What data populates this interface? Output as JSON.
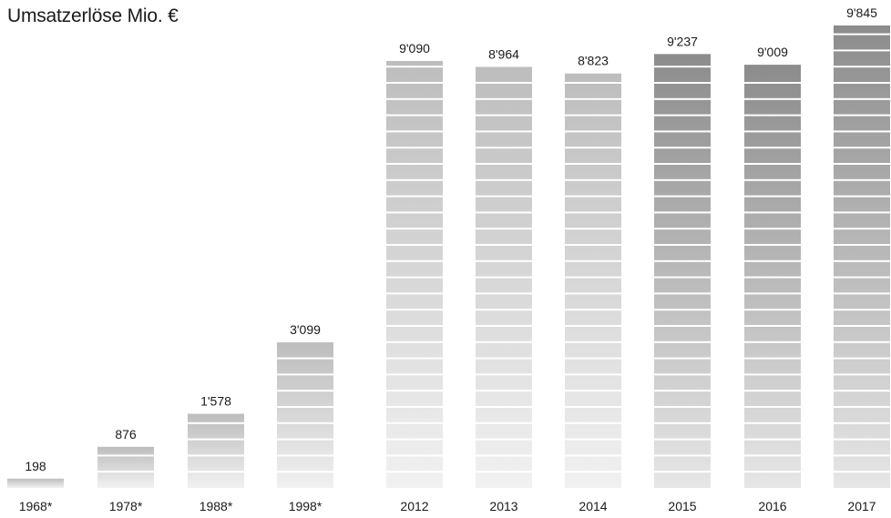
{
  "chart_data": {
    "type": "bar",
    "title": "Umsatzerlöse Mio. €",
    "xlabel": "",
    "ylabel": "",
    "categories": [
      "1968*",
      "1978*",
      "1988*",
      "1998*",
      "2012",
      "2013",
      "2014",
      "2015",
      "2016",
      "2017"
    ],
    "values": [
      198,
      876,
      1578,
      3099,
      9090,
      8964,
      8823,
      9237,
      9009,
      9845
    ],
    "value_labels": [
      "198",
      "876",
      "1'578",
      "3'099",
      "9'090",
      "8'964",
      "8'823",
      "9'237",
      "9'009",
      "9'845"
    ],
    "ylim": [
      0,
      9845
    ],
    "grid": false,
    "legend": "none",
    "colors": {
      "light_bar_top": "#bdbdbd",
      "light_bar_bottom": "#f1f1f1",
      "dark_bar_top": "#8c8c8c",
      "dark_bar_bottom": "#e6e6e6",
      "text": "#1a1a1a"
    }
  }
}
